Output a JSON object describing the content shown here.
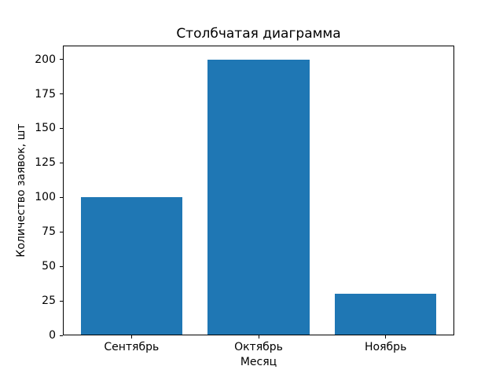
{
  "chart_data": {
    "type": "bar",
    "title": "Столбчатая диаграмма",
    "xlabel": "Месяц",
    "ylabel": "Количество заявок, шт",
    "categories": [
      "Сентябрь",
      "Октябрь",
      "Ноябрь"
    ],
    "values": [
      100,
      200,
      30
    ],
    "yticks": [
      0,
      25,
      50,
      75,
      100,
      125,
      150,
      175,
      200
    ],
    "ylim": [
      0,
      210
    ],
    "bar_width_ratio": 0.8,
    "bar_color": "#1f77b4",
    "background_color": "#ffffff",
    "text_color": "#000000",
    "grid": false,
    "legend_position": "none"
  }
}
